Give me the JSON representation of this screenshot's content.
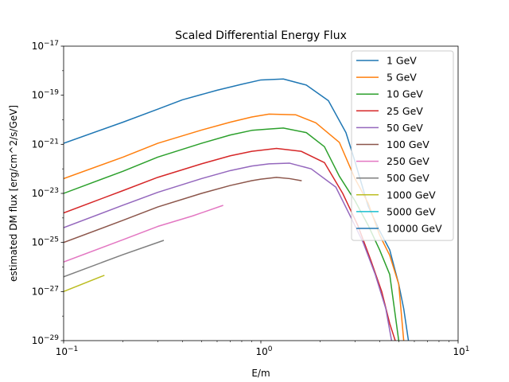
{
  "chart_data": {
    "type": "line",
    "title": "Scaled Differential Energy Flux",
    "xlabel": "E/m",
    "ylabel": "estimated DM flux [erg/cm^2/s/GeV]",
    "xscale": "log",
    "yscale": "log",
    "xlim": [
      0.1,
      10
    ],
    "ylim": [
      1e-29,
      1e-17
    ],
    "grid": false,
    "legend_position": "top-right",
    "xticks": [
      {
        "value": 0.1,
        "mant": "10",
        "exp": "−1"
      },
      {
        "value": 1,
        "mant": "10",
        "exp": "0"
      },
      {
        "value": 10,
        "mant": "10",
        "exp": "1"
      }
    ],
    "yticks": [
      {
        "value": 1e-29,
        "mant": "10",
        "exp": "−29"
      },
      {
        "value": 1e-27,
        "mant": "10",
        "exp": "−27"
      },
      {
        "value": 1e-25,
        "mant": "10",
        "exp": "−25"
      },
      {
        "value": 1e-23,
        "mant": "10",
        "exp": "−23"
      },
      {
        "value": 1e-21,
        "mant": "10",
        "exp": "−21"
      },
      {
        "value": 1e-19,
        "mant": "10",
        "exp": "−19"
      },
      {
        "value": 1e-17,
        "mant": "10",
        "exp": "−17"
      }
    ],
    "series": [
      {
        "name": "1 GeV",
        "color": "#1f77b4",
        "points": [
          [
            0.1,
            1.1e-21
          ],
          [
            0.2,
            8e-21
          ],
          [
            0.3,
            2.7e-20
          ],
          [
            0.4,
            6.5e-20
          ],
          [
            0.6,
            1.6e-19
          ],
          [
            0.8,
            2.8e-19
          ],
          [
            1.0,
            4.2e-19
          ],
          [
            1.3,
            4.6e-19
          ],
          [
            1.7,
            2.6e-19
          ],
          [
            2.2,
            6e-20
          ],
          [
            2.7,
            3e-21
          ],
          [
            3.0,
            2e-22
          ],
          [
            3.5,
            3e-24
          ],
          [
            4.0,
            3e-25
          ],
          [
            4.5,
            5e-26
          ],
          [
            5.0,
            2e-27
          ],
          [
            5.3,
            2e-28
          ],
          [
            5.6,
            1e-29
          ]
        ]
      },
      {
        "name": "5 GeV",
        "color": "#ff7f0e",
        "points": [
          [
            0.1,
            4e-23
          ],
          [
            0.2,
            3e-22
          ],
          [
            0.3,
            1.1e-21
          ],
          [
            0.5,
            3.8e-21
          ],
          [
            0.7,
            8e-21
          ],
          [
            0.9,
            1.3e-20
          ],
          [
            1.1,
            1.7e-20
          ],
          [
            1.5,
            1.6e-20
          ],
          [
            1.9,
            7.5e-21
          ],
          [
            2.5,
            1.2e-21
          ],
          [
            3.0,
            4e-23
          ],
          [
            3.5,
            4e-24
          ],
          [
            4.0,
            2e-25
          ],
          [
            4.5,
            3e-26
          ],
          [
            5.0,
            2e-27
          ],
          [
            5.3,
            1e-29
          ]
        ]
      },
      {
        "name": "10 GeV",
        "color": "#2ca02c",
        "points": [
          [
            0.1,
            1e-23
          ],
          [
            0.2,
            8e-23
          ],
          [
            0.3,
            3e-22
          ],
          [
            0.5,
            1.1e-21
          ],
          [
            0.7,
            2.4e-21
          ],
          [
            0.9,
            3.7e-21
          ],
          [
            1.1,
            4.2e-21
          ],
          [
            1.3,
            4.6e-21
          ],
          [
            1.7,
            3e-21
          ],
          [
            2.1,
            8e-22
          ],
          [
            2.5,
            5e-23
          ],
          [
            3.0,
            5e-24
          ],
          [
            3.5,
            5e-25
          ],
          [
            4.0,
            5e-26
          ],
          [
            4.5,
            5e-27
          ],
          [
            5.0,
            1e-29
          ]
        ]
      },
      {
        "name": "25 GeV",
        "color": "#d62728",
        "points": [
          [
            0.1,
            1.6e-24
          ],
          [
            0.2,
            1.3e-23
          ],
          [
            0.3,
            4.5e-23
          ],
          [
            0.5,
            1.6e-22
          ],
          [
            0.7,
            3.4e-22
          ],
          [
            0.9,
            5.2e-22
          ],
          [
            1.2,
            6.8e-22
          ],
          [
            1.6,
            5.2e-22
          ],
          [
            2.1,
            1.8e-22
          ],
          [
            2.6,
            1e-23
          ],
          [
            3.1,
            5e-25
          ],
          [
            3.6,
            2e-26
          ],
          [
            4.1,
            1e-27
          ],
          [
            4.5,
            5e-29
          ],
          [
            4.8,
            1e-29
          ]
        ]
      },
      {
        "name": "50 GeV",
        "color": "#9467bd",
        "points": [
          [
            0.1,
            4e-25
          ],
          [
            0.2,
            3.3e-24
          ],
          [
            0.3,
            1.1e-23
          ],
          [
            0.5,
            4e-23
          ],
          [
            0.7,
            8.5e-23
          ],
          [
            0.9,
            1.3e-22
          ],
          [
            1.1,
            1.6e-22
          ],
          [
            1.4,
            1.7e-22
          ],
          [
            1.8,
            1e-22
          ],
          [
            2.4,
            1.8e-23
          ],
          [
            2.8,
            1.5e-24
          ],
          [
            3.3,
            1e-25
          ],
          [
            3.8,
            5e-27
          ],
          [
            4.3,
            2e-28
          ],
          [
            4.6,
            1e-29
          ]
        ]
      },
      {
        "name": "100 GeV",
        "color": "#8c564b",
        "points": [
          [
            0.1,
            1e-25
          ],
          [
            0.2,
            8e-25
          ],
          [
            0.3,
            2.8e-24
          ],
          [
            0.5,
            1e-23
          ],
          [
            0.7,
            2.1e-23
          ],
          [
            0.9,
            3.3e-23
          ],
          [
            1.0,
            3.8e-23
          ],
          [
            1.2,
            4.5e-23
          ],
          [
            1.4,
            4e-23
          ],
          [
            1.6,
            3.3e-23
          ]
        ]
      },
      {
        "name": "250 GeV",
        "color": "#e377c2",
        "points": [
          [
            0.1,
            1.6e-26
          ],
          [
            0.2,
            1.3e-25
          ],
          [
            0.3,
            4.5e-25
          ],
          [
            0.45,
            1.2e-24
          ],
          [
            0.64,
            3.2e-24
          ]
        ]
      },
      {
        "name": "500 GeV",
        "color": "#7f7f7f",
        "points": [
          [
            0.1,
            4e-27
          ],
          [
            0.2,
            3.2e-26
          ],
          [
            0.32,
            1.2e-25
          ]
        ]
      },
      {
        "name": "1000 GeV",
        "color": "#bcbd22",
        "points": [
          [
            0.1,
            1e-27
          ],
          [
            0.16,
            4.5e-27
          ]
        ]
      },
      {
        "name": "5000 GeV",
        "color": "#17becf",
        "points": []
      },
      {
        "name": "10000 GeV",
        "color": "#1f77b4",
        "points": []
      }
    ]
  }
}
